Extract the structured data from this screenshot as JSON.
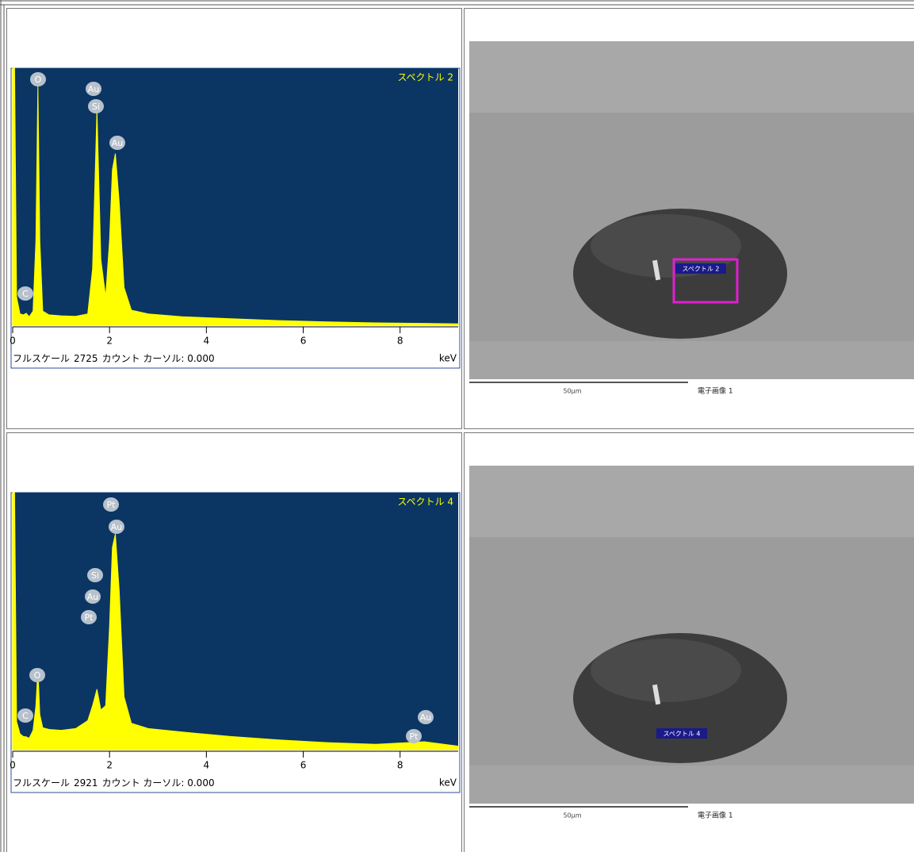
{
  "chart_data": [
    {
      "type": "line",
      "title": "スペクトル 2",
      "background": "#0b3563",
      "color": "#ffff00",
      "xlim": [
        0,
        9.2
      ],
      "xticks": [
        0,
        2,
        4,
        6,
        8
      ],
      "x_unit": "keV",
      "status_prefix": "フルスケール",
      "full_scale": 2725,
      "status_suffix": "カウント カーソル: 0.000",
      "x": [
        0,
        0.04,
        0.08,
        0.15,
        0.22,
        0.28,
        0.34,
        0.42,
        0.48,
        0.52,
        0.56,
        0.62,
        0.75,
        1.0,
        1.3,
        1.55,
        1.65,
        1.74,
        1.82,
        1.92,
        2.0,
        2.06,
        2.12,
        2.2,
        2.3,
        2.45,
        2.8,
        3.5,
        4.5,
        5.5,
        6.5,
        7.5,
        8.5,
        9.2
      ],
      "values": [
        2725,
        2725,
        300,
        120,
        110,
        127,
        90,
        150,
        900,
        2540,
        900,
        150,
        110,
        100,
        95,
        120,
        600,
        2285,
        700,
        300,
        900,
        1650,
        1820,
        1300,
        400,
        160,
        120,
        90,
        70,
        50,
        35,
        25,
        20,
        15
      ],
      "annotations": [
        "O",
        "Au",
        "Si",
        "Au",
        "C"
      ]
    },
    {
      "type": "line",
      "title": "スペクトル 4",
      "background": "#0b3563",
      "color": "#ffff00",
      "xlim": [
        0,
        9.2
      ],
      "xticks": [
        0,
        2,
        4,
        6,
        8
      ],
      "x_unit": "keV",
      "status_prefix": "フルスケール",
      "full_scale": 2921,
      "status_suffix": "カウント カーソル: 0.000",
      "x": [
        0,
        0.04,
        0.08,
        0.15,
        0.22,
        0.28,
        0.34,
        0.42,
        0.48,
        0.52,
        0.56,
        0.62,
        0.75,
        1.0,
        1.3,
        1.55,
        1.65,
        1.74,
        1.82,
        1.92,
        2.0,
        2.06,
        2.12,
        2.2,
        2.3,
        2.45,
        2.8,
        3.5,
        4.5,
        5.5,
        6.5,
        7.5,
        8.5,
        9.2
      ],
      "values": [
        2921,
        2921,
        320,
        180,
        150,
        145,
        130,
        220,
        500,
        913,
        400,
        250,
        230,
        220,
        240,
        330,
        500,
        687,
        450,
        500,
        1400,
        2300,
        2450,
        1800,
        600,
        300,
        240,
        200,
        150,
        110,
        80,
        60,
        90,
        40
      ],
      "annotations": [
        "Pt",
        "Au",
        "Si",
        "Au",
        "Pt",
        "O",
        "C",
        "Au",
        "Pt"
      ]
    }
  ],
  "images": [
    {
      "spectrum_tag": "スペクトル 2",
      "scale": "50µm",
      "caption": "電子画像 1"
    },
    {
      "spectrum_tag": "スペクトル 4",
      "scale": "50µm",
      "caption": "電子画像 1"
    }
  ]
}
